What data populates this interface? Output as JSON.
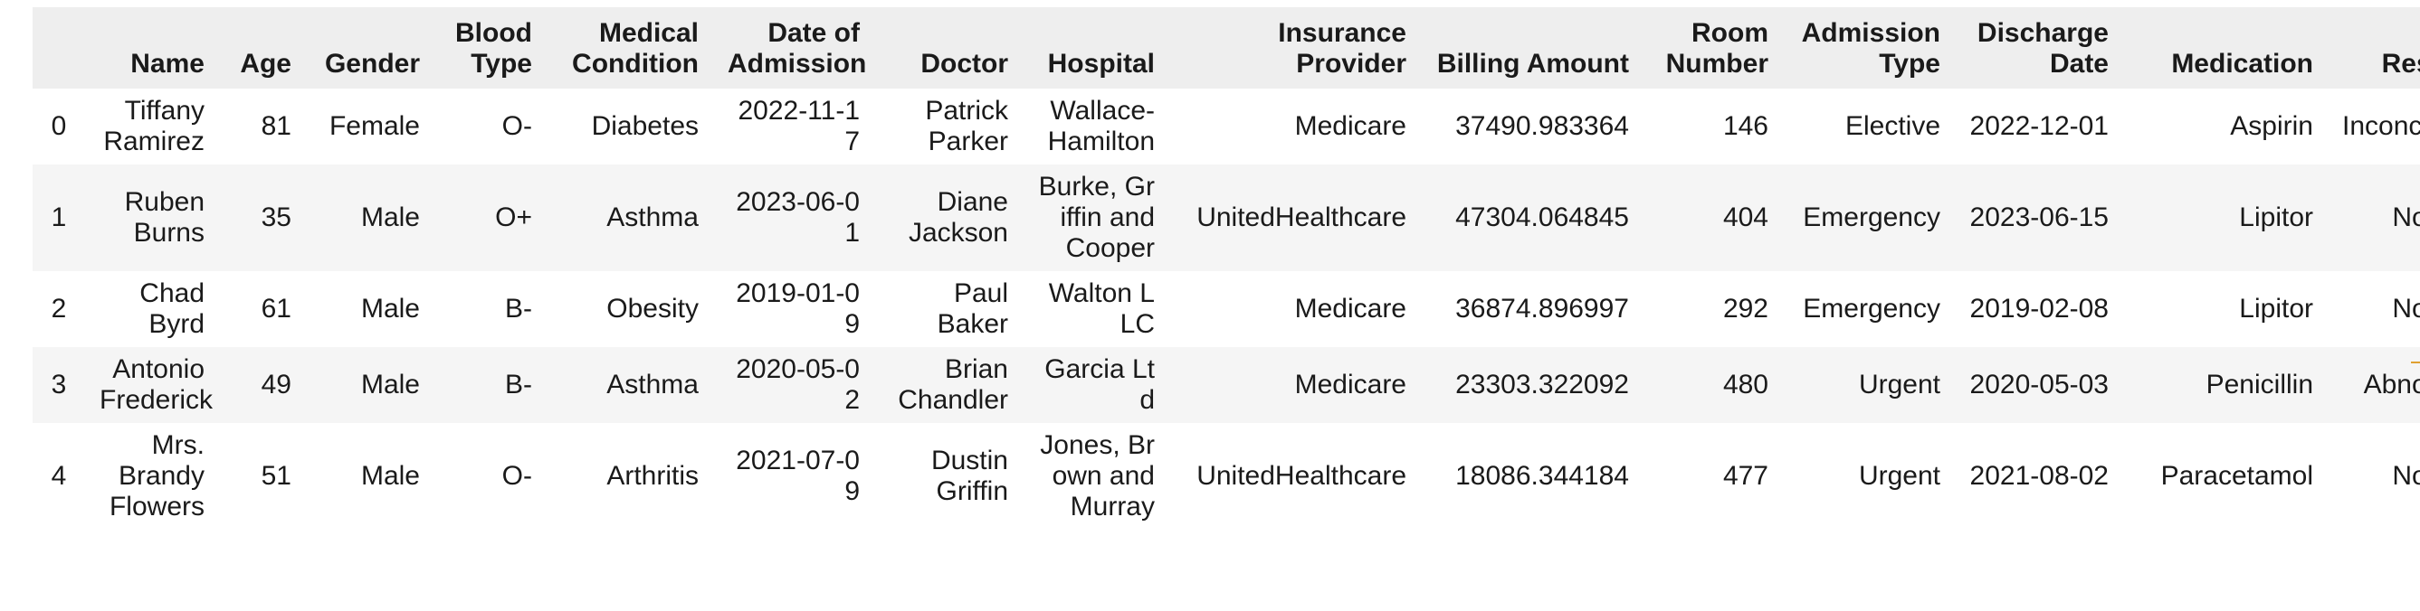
{
  "columns": [
    "Name",
    "Age",
    "Gender",
    "Blood Type",
    "Medical Condition",
    "Date of Admission",
    "Doctor",
    "Hospital",
    "Insurance Provider",
    "Billing Amount",
    "Room Number",
    "Admission Type",
    "Discharge Date",
    "Medication",
    "Test Results"
  ],
  "rows": [
    {
      "index": "0",
      "cells": [
        "Tiffany Ramirez",
        "81",
        "Female",
        "O-",
        "Diabetes",
        "2022-11-17",
        "Patrick Parker",
        "Wallace-Hamilton",
        "Medicare",
        "37490.983364",
        "146",
        "Elective",
        "2022-12-01",
        "Aspirin",
        "Inconclusive"
      ]
    },
    {
      "index": "1",
      "cells": [
        "Ruben Burns",
        "35",
        "Male",
        "O+",
        "Asthma",
        "2023-06-01",
        "Diane Jackson",
        "Burke, Griffin and Cooper",
        "UnitedHealthcare",
        "47304.064845",
        "404",
        "Emergency",
        "2023-06-15",
        "Lipitor",
        "Normal"
      ]
    },
    {
      "index": "2",
      "cells": [
        "Chad Byrd",
        "61",
        "Male",
        "B-",
        "Obesity",
        "2019-01-09",
        "Paul Baker",
        "Walton LLC",
        "Medicare",
        "36874.896997",
        "292",
        "Emergency",
        "2019-02-08",
        "Lipitor",
        "Normal"
      ]
    },
    {
      "index": "3",
      "cells": [
        "Antonio Frederick",
        "49",
        "Male",
        "B-",
        "Asthma",
        "2020-05-02",
        "Brian Chandler",
        "Garcia Ltd",
        "Medicare",
        "23303.322092",
        "480",
        "Urgent",
        "2020-05-03",
        "Penicillin",
        "Abnormal"
      ]
    },
    {
      "index": "4",
      "cells": [
        "Mrs. Brandy Flowers",
        "51",
        "Male",
        "O-",
        "Arthritis",
        "2021-07-09",
        "Dustin Griffin",
        "Jones, Brown and Murray",
        "UnitedHealthcare",
        "18086.344184",
        "477",
        "Urgent",
        "2021-08-02",
        "Paracetamol",
        "Normal"
      ]
    }
  ],
  "colors": {
    "header_bg": "#eeeeee",
    "stripe_bg": "#f5f5f5",
    "text": "#1a1a1a"
  }
}
